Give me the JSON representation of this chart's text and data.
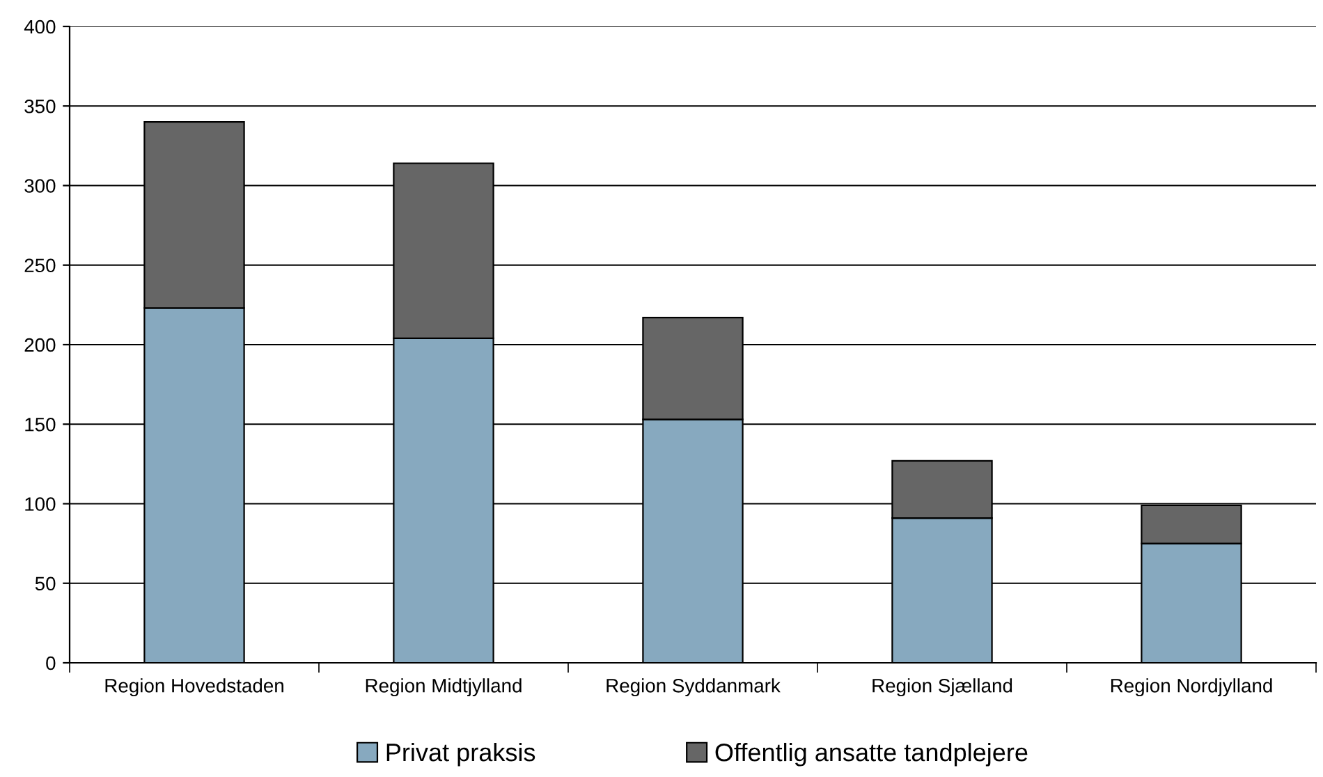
{
  "chart_data": {
    "type": "bar",
    "stacked": true,
    "categories": [
      "Region Hovedstaden",
      "Region Midtjylland",
      "Region Syddanmark",
      "Region Sjælland",
      "Region Nordjylland"
    ],
    "series": [
      {
        "name": "Privat praksis",
        "color": "#87a9bf",
        "values": [
          223,
          204,
          153,
          91,
          75
        ]
      },
      {
        "name": "Offentlig ansatte tandplejere",
        "color": "#666666",
        "values": [
          117,
          110,
          64,
          36,
          24
        ]
      }
    ],
    "ylim": [
      0,
      400
    ],
    "yticks": [
      0,
      50,
      100,
      150,
      200,
      250,
      300,
      350,
      400
    ],
    "grid": "y",
    "legend": "bottom"
  }
}
